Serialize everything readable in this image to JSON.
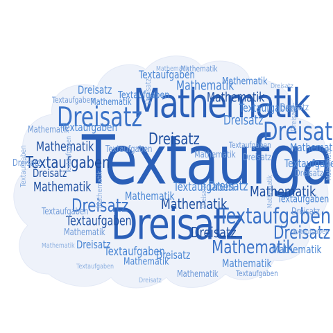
{
  "word_cloud": {
    "shape": "cloud",
    "background_color": "#ffffff",
    "cloud_fill_color": "#eef2fa",
    "words": {
      "textaufgaben": "Textaufgaben",
      "mathematik": "Mathematik",
      "dreisatz": "Dreisatz"
    },
    "palette": [
      "#2a5fb8",
      "#3b73c8",
      "#1e4fa0",
      "#4a86d4",
      "#6f9ad8",
      "#8db0e0"
    ]
  }
}
